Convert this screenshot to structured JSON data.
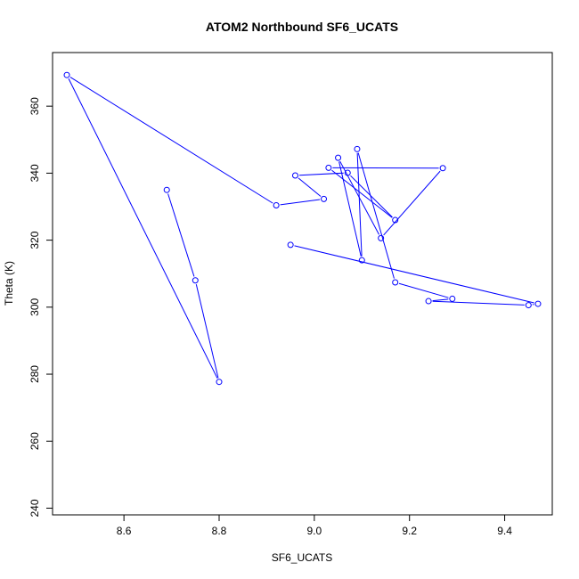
{
  "chart_data": {
    "type": "line",
    "title": "ATOM2 Northbound SF6_UCATS",
    "xlabel": "SF6_UCATS",
    "ylabel": "Theta (K)",
    "xlim": [
      8.45,
      9.5
    ],
    "ylim": [
      238,
      376
    ],
    "xticks": [
      8.6,
      8.8,
      9.0,
      9.2,
      9.4
    ],
    "yticks": [
      240,
      260,
      280,
      300,
      320,
      340,
      360
    ],
    "xtick_labels": [
      "8.6",
      "8.8",
      "9.0",
      "9.2",
      "9.4"
    ],
    "ytick_labels": [
      "240",
      "260",
      "280",
      "300",
      "320",
      "340",
      "360"
    ],
    "grid": false,
    "series": [
      {
        "color": "#0000ff",
        "markers": "open-circle",
        "x": [
          8.69,
          8.75,
          8.8,
          8.48,
          8.92,
          9.02,
          8.96,
          9.07,
          9.17,
          9.03,
          9.27,
          9.14,
          9.05,
          9.1,
          9.09,
          9.17,
          9.29,
          9.24,
          9.45,
          9.47,
          8.95
        ],
        "y": [
          335.0,
          308.0,
          277.7,
          369.3,
          330.4,
          332.3,
          339.3,
          340.1,
          326.0,
          341.6,
          341.5,
          320.6,
          344.6,
          314.0,
          347.2,
          307.4,
          302.5,
          301.8,
          300.6,
          301.0,
          318.6
        ]
      }
    ]
  }
}
